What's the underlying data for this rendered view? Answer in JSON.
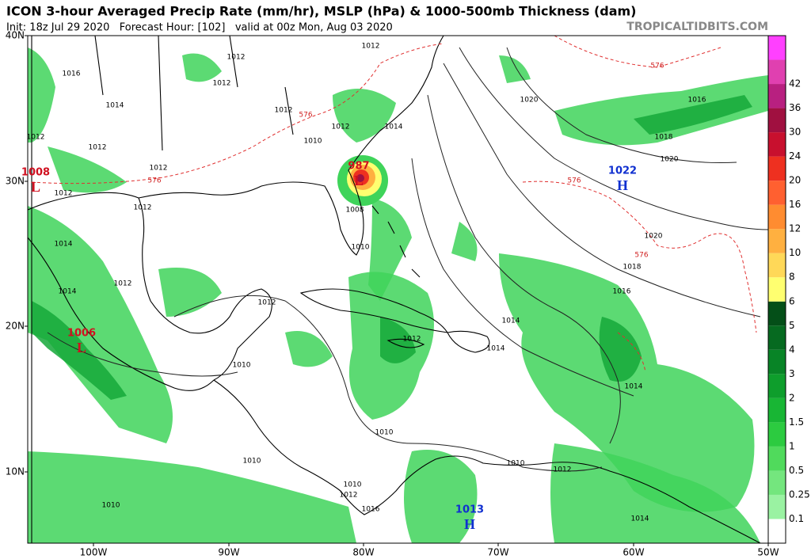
{
  "header": {
    "title": "ICON 3-hour Averaged Precip Rate (mm/hr), MSLP (hPa) & 1000-500mb Thickness (dam)",
    "subtitle": "Init: 18z Jul 29 2020   Forecast Hour: [102]   valid at 00z Mon, Aug 03 2020",
    "site": "TROPICALTIDBITS.COM"
  },
  "map": {
    "lat_labels": [
      "40N",
      "30N",
      "20N",
      "10N"
    ],
    "lon_labels": [
      "100W",
      "90W",
      "80W",
      "70W",
      "60W",
      "50W"
    ],
    "colorbar": {
      "labels": [
        0.1,
        0.25,
        0.5,
        1,
        1.5,
        2,
        3,
        4,
        5,
        6,
        8,
        10,
        12,
        16,
        20,
        24,
        30,
        36,
        42
      ],
      "colors": [
        "#ffffff",
        "#9af2a2",
        "#74e67e",
        "#50da5c",
        "#2ccb40",
        "#18b634",
        "#0e9e2c",
        "#088426",
        "#066a20",
        "#044f18",
        "#ffff70",
        "#ffd858",
        "#ffb040",
        "#ff8c30",
        "#ff6030",
        "#ee3020",
        "#c8102e",
        "#a01040",
        "#b82080",
        "#e040b0",
        "#ff40ff"
      ]
    },
    "pressure_centers": [
      {
        "symbol": "L",
        "value": 987
      },
      {
        "symbol": "H",
        "value": 1022
      },
      {
        "symbol": "L",
        "value": 1008
      },
      {
        "symbol": "L",
        "value": 1006
      },
      {
        "symbol": "H",
        "value": 1013
      }
    ],
    "contour_labels": [
      1012,
      1012,
      1016,
      1014,
      1012,
      1012,
      1012,
      1010,
      1014,
      1012,
      1012,
      1012,
      576,
      1012,
      1012,
      1008,
      1010,
      1020,
      576,
      1016,
      1018,
      1020,
      576,
      1020,
      576,
      1018,
      1016,
      1014,
      1012,
      1014,
      1012,
      1014,
      1012,
      1014,
      1010,
      1014,
      1010,
      1010,
      1012,
      1010,
      1010,
      1012,
      1016,
      1010,
      1014,
      576
    ]
  }
}
